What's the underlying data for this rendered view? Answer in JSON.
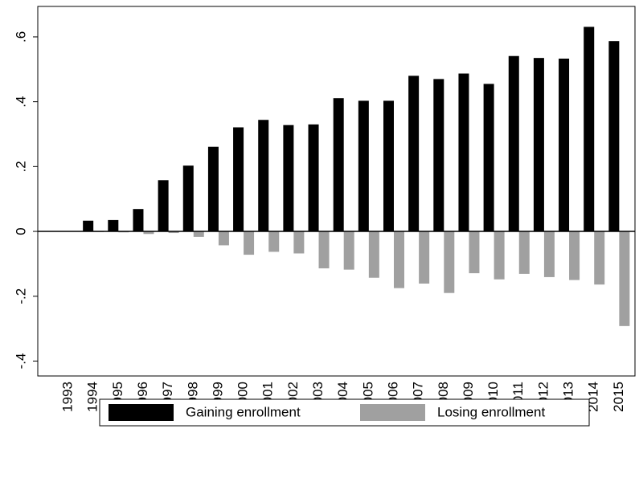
{
  "chart_data": {
    "type": "bar",
    "categories": [
      "1993",
      "1994",
      "1995",
      "1996",
      "1997",
      "1998",
      "1999",
      "2000",
      "2001",
      "2002",
      "2003",
      "2004",
      "2005",
      "2006",
      "2007",
      "2008",
      "2009",
      "2010",
      "2011",
      "2012",
      "2013",
      "2014",
      "2015"
    ],
    "series": [
      {
        "name": "Gaining enrollment",
        "color": "#000000",
        "values": [
          0,
          0.033,
          0.035,
          0.069,
          0.158,
          0.203,
          0.261,
          0.321,
          0.344,
          0.328,
          0.33,
          0.411,
          0.403,
          0.403,
          0.48,
          0.47,
          0.487,
          0.455,
          0.541,
          0.535,
          0.533,
          0.631,
          0.587
        ]
      },
      {
        "name": "Losing enrollment",
        "color": "#a0a0a0",
        "values": [
          0,
          -0.002,
          -0.003,
          -0.008,
          -0.005,
          -0.017,
          -0.043,
          -0.072,
          -0.063,
          -0.068,
          -0.114,
          -0.118,
          -0.143,
          -0.175,
          -0.161,
          -0.19,
          -0.129,
          -0.148,
          -0.131,
          -0.141,
          -0.15,
          -0.164,
          -0.292
        ]
      }
    ],
    "ylim": [
      -0.446,
      0.694
    ],
    "yticks": [
      {
        "value": -0.4,
        "label": "-.4"
      },
      {
        "value": -0.2,
        "label": "-.2"
      },
      0,
      {
        "value": 0.2,
        "label": ".2"
      },
      {
        "value": 0.4,
        "label": ".4"
      },
      {
        "value": 0.6,
        "label": ".6"
      }
    ],
    "grid": false,
    "legend": "bottom"
  }
}
